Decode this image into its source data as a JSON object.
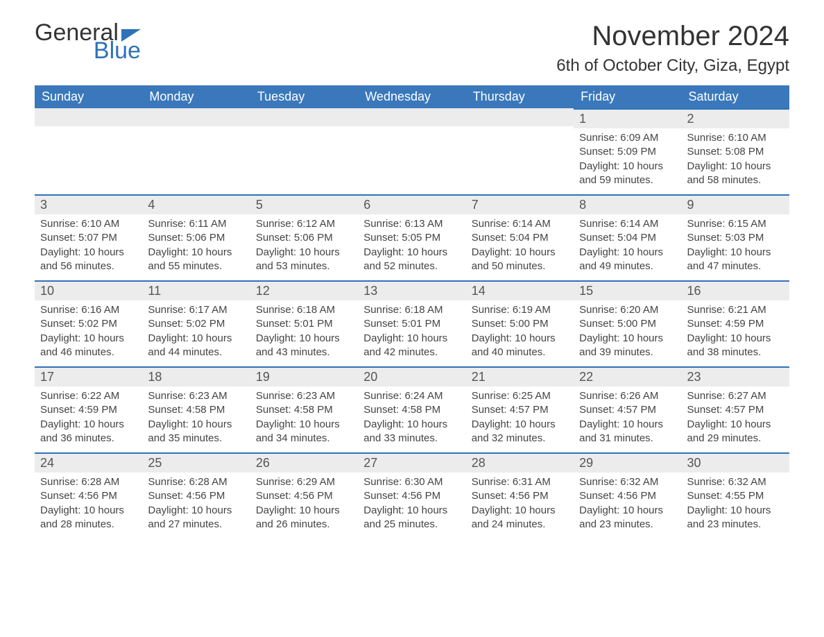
{
  "brand": {
    "part1": "General",
    "part2": "Blue"
  },
  "title": "November 2024",
  "location": "6th of October City, Giza, Egypt",
  "colors": {
    "header_bg": "#3a78bb",
    "header_text": "#ffffff",
    "day_bar_bg": "#ececec",
    "day_bar_border": "#2f72b9",
    "body_bg": "#ffffff",
    "text": "#333333",
    "logo_accent": "#2f72b9"
  },
  "typography": {
    "title_fontsize": 40,
    "location_fontsize": 24,
    "weekday_fontsize": 18,
    "daynum_fontsize": 18,
    "body_fontsize": 15,
    "font_family": "Arial"
  },
  "weekdays": [
    "Sunday",
    "Monday",
    "Tuesday",
    "Wednesday",
    "Thursday",
    "Friday",
    "Saturday"
  ],
  "labels": {
    "sunrise_prefix": "Sunrise: ",
    "sunset_prefix": "Sunset: ",
    "daylight_prefix": "Daylight: "
  },
  "weeks": [
    [
      null,
      null,
      null,
      null,
      null,
      {
        "n": "1",
        "sunrise": "6:09 AM",
        "sunset": "5:09 PM",
        "daylight": "10 hours and 59 minutes."
      },
      {
        "n": "2",
        "sunrise": "6:10 AM",
        "sunset": "5:08 PM",
        "daylight": "10 hours and 58 minutes."
      }
    ],
    [
      {
        "n": "3",
        "sunrise": "6:10 AM",
        "sunset": "5:07 PM",
        "daylight": "10 hours and 56 minutes."
      },
      {
        "n": "4",
        "sunrise": "6:11 AM",
        "sunset": "5:06 PM",
        "daylight": "10 hours and 55 minutes."
      },
      {
        "n": "5",
        "sunrise": "6:12 AM",
        "sunset": "5:06 PM",
        "daylight": "10 hours and 53 minutes."
      },
      {
        "n": "6",
        "sunrise": "6:13 AM",
        "sunset": "5:05 PM",
        "daylight": "10 hours and 52 minutes."
      },
      {
        "n": "7",
        "sunrise": "6:14 AM",
        "sunset": "5:04 PM",
        "daylight": "10 hours and 50 minutes."
      },
      {
        "n": "8",
        "sunrise": "6:14 AM",
        "sunset": "5:04 PM",
        "daylight": "10 hours and 49 minutes."
      },
      {
        "n": "9",
        "sunrise": "6:15 AM",
        "sunset": "5:03 PM",
        "daylight": "10 hours and 47 minutes."
      }
    ],
    [
      {
        "n": "10",
        "sunrise": "6:16 AM",
        "sunset": "5:02 PM",
        "daylight": "10 hours and 46 minutes."
      },
      {
        "n": "11",
        "sunrise": "6:17 AM",
        "sunset": "5:02 PM",
        "daylight": "10 hours and 44 minutes."
      },
      {
        "n": "12",
        "sunrise": "6:18 AM",
        "sunset": "5:01 PM",
        "daylight": "10 hours and 43 minutes."
      },
      {
        "n": "13",
        "sunrise": "6:18 AM",
        "sunset": "5:01 PM",
        "daylight": "10 hours and 42 minutes."
      },
      {
        "n": "14",
        "sunrise": "6:19 AM",
        "sunset": "5:00 PM",
        "daylight": "10 hours and 40 minutes."
      },
      {
        "n": "15",
        "sunrise": "6:20 AM",
        "sunset": "5:00 PM",
        "daylight": "10 hours and 39 minutes."
      },
      {
        "n": "16",
        "sunrise": "6:21 AM",
        "sunset": "4:59 PM",
        "daylight": "10 hours and 38 minutes."
      }
    ],
    [
      {
        "n": "17",
        "sunrise": "6:22 AM",
        "sunset": "4:59 PM",
        "daylight": "10 hours and 36 minutes."
      },
      {
        "n": "18",
        "sunrise": "6:23 AM",
        "sunset": "4:58 PM",
        "daylight": "10 hours and 35 minutes."
      },
      {
        "n": "19",
        "sunrise": "6:23 AM",
        "sunset": "4:58 PM",
        "daylight": "10 hours and 34 minutes."
      },
      {
        "n": "20",
        "sunrise": "6:24 AM",
        "sunset": "4:58 PM",
        "daylight": "10 hours and 33 minutes."
      },
      {
        "n": "21",
        "sunrise": "6:25 AM",
        "sunset": "4:57 PM",
        "daylight": "10 hours and 32 minutes."
      },
      {
        "n": "22",
        "sunrise": "6:26 AM",
        "sunset": "4:57 PM",
        "daylight": "10 hours and 31 minutes."
      },
      {
        "n": "23",
        "sunrise": "6:27 AM",
        "sunset": "4:57 PM",
        "daylight": "10 hours and 29 minutes."
      }
    ],
    [
      {
        "n": "24",
        "sunrise": "6:28 AM",
        "sunset": "4:56 PM",
        "daylight": "10 hours and 28 minutes."
      },
      {
        "n": "25",
        "sunrise": "6:28 AM",
        "sunset": "4:56 PM",
        "daylight": "10 hours and 27 minutes."
      },
      {
        "n": "26",
        "sunrise": "6:29 AM",
        "sunset": "4:56 PM",
        "daylight": "10 hours and 26 minutes."
      },
      {
        "n": "27",
        "sunrise": "6:30 AM",
        "sunset": "4:56 PM",
        "daylight": "10 hours and 25 minutes."
      },
      {
        "n": "28",
        "sunrise": "6:31 AM",
        "sunset": "4:56 PM",
        "daylight": "10 hours and 24 minutes."
      },
      {
        "n": "29",
        "sunrise": "6:32 AM",
        "sunset": "4:56 PM",
        "daylight": "10 hours and 23 minutes."
      },
      {
        "n": "30",
        "sunrise": "6:32 AM",
        "sunset": "4:55 PM",
        "daylight": "10 hours and 23 minutes."
      }
    ]
  ]
}
